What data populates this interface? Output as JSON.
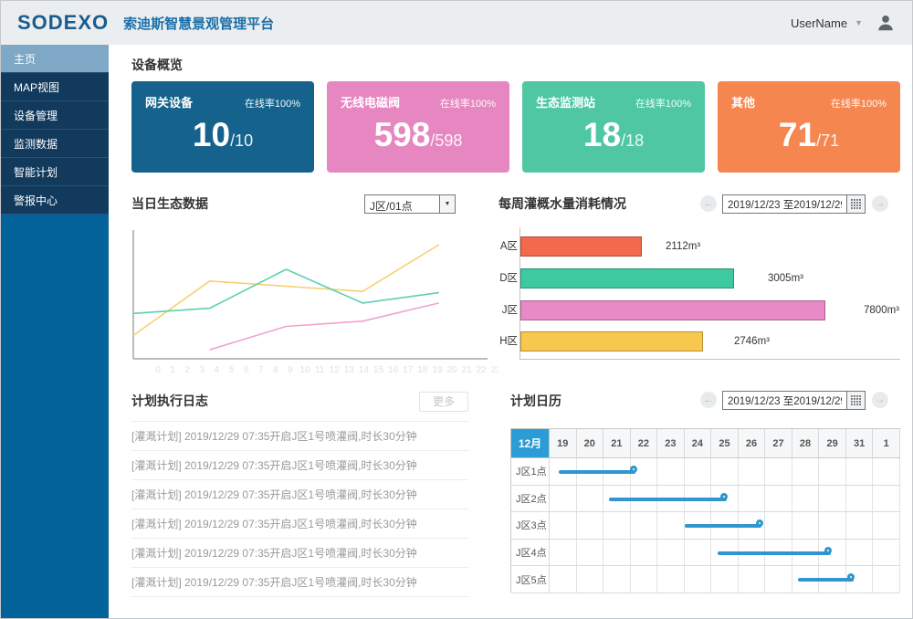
{
  "header": {
    "logo": "SODEXO",
    "title": "索迪斯智慧景观管理平台",
    "user": {
      "name": "UserName"
    }
  },
  "sidebar": {
    "items": [
      {
        "label": "主页",
        "active": true
      },
      {
        "label": "MAP视图",
        "active": false
      },
      {
        "label": "设备管理",
        "active": false
      },
      {
        "label": "监测数据",
        "active": false
      },
      {
        "label": "智能计划",
        "active": false
      },
      {
        "label": "警报中心",
        "active": false
      }
    ]
  },
  "device_overview": {
    "title": "设备概览",
    "cards": [
      {
        "name": "网关设备",
        "online_rate": "在线率100%",
        "count": "10",
        "total": "/10",
        "color": "#15638d"
      },
      {
        "name": "无线电磁阀",
        "online_rate": "在线率100%",
        "count": "598",
        "total": "/598",
        "color": "#e687c2"
      },
      {
        "name": "生态监测站",
        "online_rate": "在线率100%",
        "count": "18",
        "total": "/18",
        "color": "#4ec7a2"
      },
      {
        "name": "其他",
        "online_rate": "在线率100%",
        "count": "71",
        "total": "/71",
        "color": "#f6864f"
      }
    ]
  },
  "eco_chart": {
    "title": "当日生态数据",
    "selector": {
      "value": "J区/01点"
    }
  },
  "water_chart": {
    "title": "每周灌概水量消耗情况",
    "date_range": "2019/12/23 至2019/12/29"
  },
  "plan_log": {
    "title": "计划执行日志",
    "more_label": "更多",
    "entries": [
      "[灌溉计划] 2019/12/29 07:35开启J区1号喷灌阀,时长30分钟",
      "[灌溉计划] 2019/12/29 07:35开启J区1号喷灌阀,时长30分钟",
      "[灌溉计划] 2019/12/29 07:35开启J区1号喷灌阀,时长30分钟",
      "[灌溉计划] 2019/12/29 07:35开启J区1号喷灌阀,时长30分钟",
      "[灌溉计划] 2019/12/29 07:35开启J区1号喷灌阀,时长30分钟",
      "[灌溉计划] 2019/12/29 07:35开启J区1号喷灌阀,时长30分钟"
    ]
  },
  "plan_calendar": {
    "title": "计划日历",
    "date_range": "2019/12/23 至2019/12/29",
    "month_label": "12月",
    "days": [
      "19",
      "20",
      "21",
      "22",
      "23",
      "24",
      "25",
      "26",
      "27",
      "28",
      "29",
      "31",
      "1"
    ],
    "bar_color": "#2f96cf",
    "rows": [
      {
        "label": "J区1点",
        "start": 0.34,
        "end": 3.19
      },
      {
        "label": "J区2点",
        "start": 2.18,
        "end": 6.54
      },
      {
        "label": "J区3点",
        "start": 5.0,
        "end": 7.85
      },
      {
        "label": "J区4点",
        "start": 6.2,
        "end": 10.4
      },
      {
        "label": "J区5点",
        "start": 9.19,
        "end": 11.24
      }
    ]
  },
  "chart_data": [
    {
      "id": "daily-eco-line",
      "type": "line",
      "title": "当日生态数据",
      "xlabel": "",
      "ylabel": "",
      "ylim": [
        0,
        100
      ],
      "grid": false,
      "legend": "none",
      "x_ticks": [
        "0",
        "1",
        "2",
        "3",
        "4",
        "5",
        "6",
        "7",
        "8",
        "9",
        "10",
        "11",
        "12",
        "13",
        "14",
        "15",
        "16",
        "17",
        "18",
        "19",
        "20",
        "21",
        "22",
        "23"
      ],
      "series": [
        {
          "name": "series-yellow",
          "color": "#f8cf70",
          "points": [
            [
              0,
              18
            ],
            [
              5,
              60
            ],
            [
              10,
              56
            ],
            [
              15,
              52
            ],
            [
              20,
              88
            ]
          ]
        },
        {
          "name": "series-teal",
          "color": "#5ed0ad",
          "points": [
            [
              0,
              35
            ],
            [
              5,
              39
            ],
            [
              10,
              69
            ],
            [
              15,
              43
            ],
            [
              20,
              51
            ]
          ]
        },
        {
          "name": "series-pink",
          "color": "#f0a2cf",
          "points": [
            [
              5,
              7
            ],
            [
              10,
              25
            ],
            [
              15,
              29
            ],
            [
              20,
              43
            ]
          ]
        }
      ]
    },
    {
      "id": "weekly-water-bar",
      "type": "bar",
      "title": "每周灌概水量消耗情况",
      "categories": [
        "A区",
        "D区",
        "J区",
        "H区"
      ],
      "values": [
        2112,
        3005,
        7800,
        2746
      ],
      "value_labels": [
        "2112m³",
        "3005m³",
        "7800m³",
        "2746m³"
      ],
      "colors": [
        "#f2694c",
        "#3fc9a1",
        "#e88ac5",
        "#f7c84d"
      ],
      "bar_length_pct": [
        32,
        56,
        80,
        48
      ],
      "orientation": "horizontal",
      "xlabel": "",
      "ylabel": "",
      "grid": false
    }
  ]
}
